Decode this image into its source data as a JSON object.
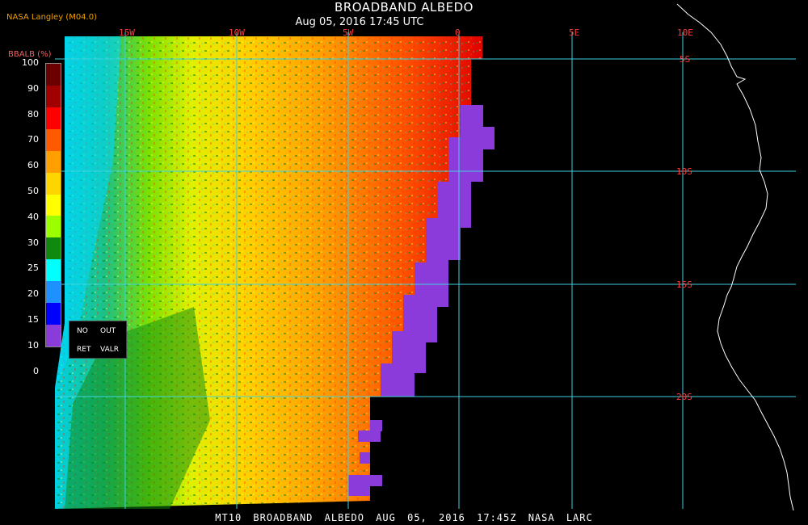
{
  "header": {
    "title": "BROADBAND ALBEDO",
    "subtitle": "Aug 05, 2016 17:45 UTC",
    "producer": "NASA Langley (M04.0)"
  },
  "colorbar": {
    "title": "BBALB (%)",
    "labels": [
      "100",
      "90",
      "80",
      "70",
      "60",
      "50",
      "40",
      "30",
      "25",
      "20",
      "15",
      "10",
      "0"
    ],
    "colors": [
      "#6a0000",
      "#a00000",
      "#ff0000",
      "#ff5a00",
      "#ff9f00",
      "#ffd500",
      "#ffff00",
      "#9cff00",
      "#0f8a0f",
      "#00ffff",
      "#1e90ff",
      "#0000ff",
      "#8b3bd9"
    ],
    "key": {
      "no": "NO",
      "out": "OUT",
      "ret": "RET",
      "valr": "VALR"
    }
  },
  "map": {
    "lon_labels": [
      "15W",
      "10W",
      "5W",
      "0",
      "5E",
      "10E"
    ],
    "lat_labels": [
      "5S",
      "10S",
      "15S",
      "20S"
    ],
    "grid_color": "#40d0e0",
    "coast_color": "#ffffff",
    "no_retrieval_color": "#8b3bd9"
  },
  "footer": {
    "text": "MT10  BROADBAND ALBEDO  AUG 05, 2016 17:45Z  NASA LARC"
  }
}
